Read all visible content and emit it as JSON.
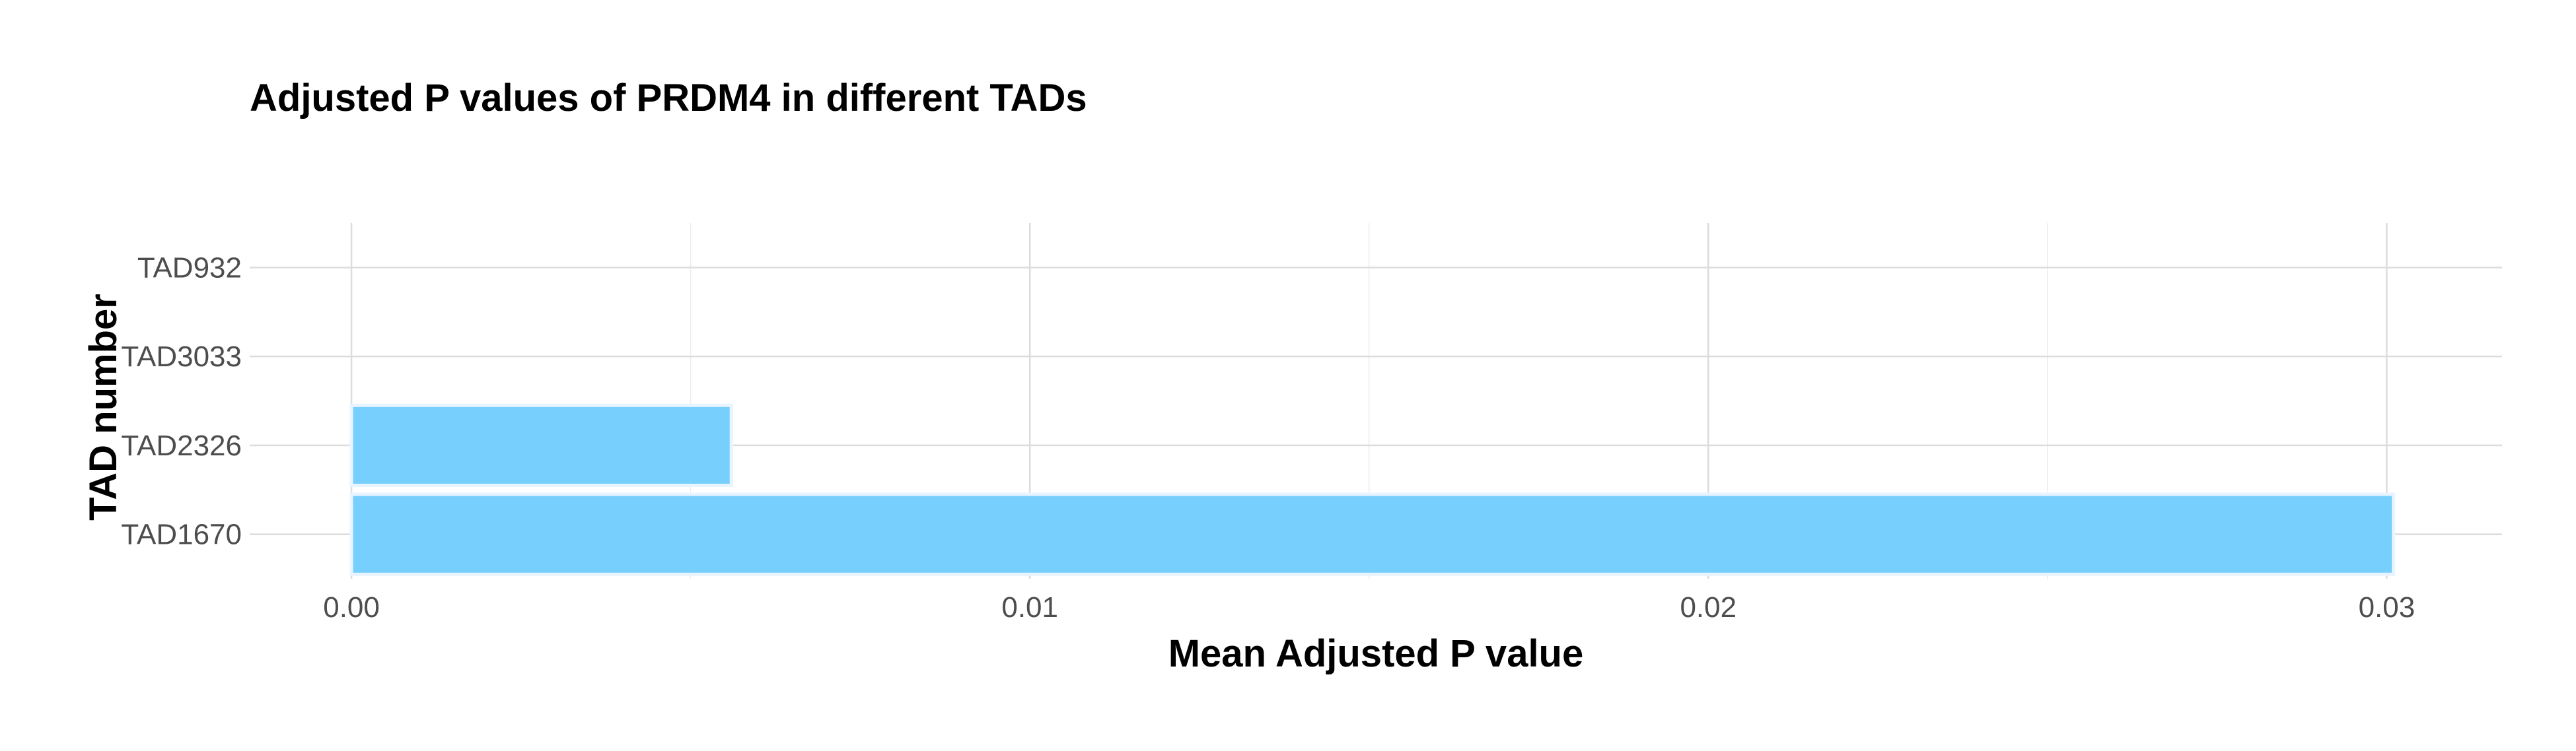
{
  "chart_data": {
    "type": "bar",
    "orientation": "horizontal",
    "title": "Adjusted P values of PRDM4 in different TADs",
    "xlabel": "Mean Adjusted P value",
    "ylabel": "TAD number",
    "categories": [
      "TAD1670",
      "TAD2326",
      "TAD3033",
      "TAD932"
    ],
    "values": [
      0.0301,
      0.0056,
      0.0,
      0.0
    ],
    "xlim": [
      -0.0015,
      0.0317
    ],
    "x_ticks": [
      0.0,
      0.01,
      0.02,
      0.03
    ],
    "x_tick_labels": [
      "0.00",
      "0.01",
      "0.02",
      "0.03"
    ],
    "bar_color": "#76cffc",
    "grid": true
  }
}
